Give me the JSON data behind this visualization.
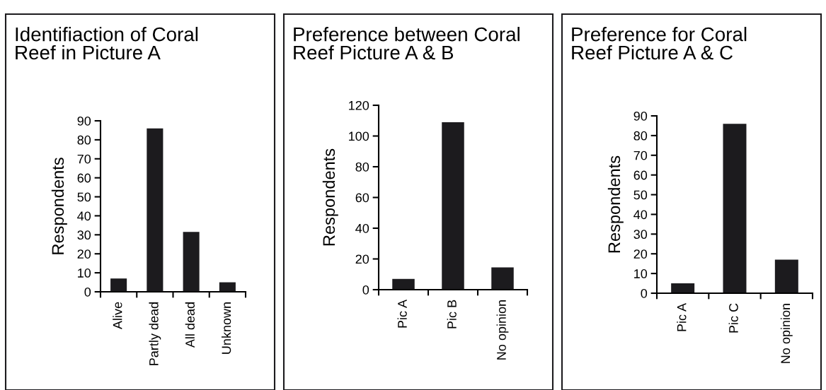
{
  "chart_data": [
    {
      "type": "bar",
      "title": "Identifiaction of Coral\nReef in Picture A",
      "ylabel": "Respondents",
      "categories": [
        "Alive",
        "Partly dead",
        "All dead",
        "Unknown"
      ],
      "values": [
        7,
        86,
        31.5,
        5
      ],
      "color": "#1c1b1e",
      "ylim": [
        0,
        90
      ],
      "yticks": [
        0,
        10,
        20,
        30,
        40,
        50,
        60,
        70,
        80,
        90
      ],
      "grid": false,
      "legend": false
    },
    {
      "type": "bar",
      "title": "Preference between Coral\nReef Picture A & B",
      "ylabel": "Respondents",
      "categories": [
        "Pic A",
        "Pic B",
        "No opinion"
      ],
      "values": [
        7,
        109,
        14.5
      ],
      "color": "#1c1b1e",
      "ylim": [
        0,
        120
      ],
      "yticks": [
        0,
        20,
        40,
        60,
        80,
        100,
        120
      ],
      "grid": false,
      "legend": false
    },
    {
      "type": "bar",
      "title": "Preference for Coral\nReef Picture A & C",
      "ylabel": "Respondents",
      "categories": [
        "Pic A",
        "Pic C",
        "No opinion"
      ],
      "values": [
        5,
        86,
        17
      ],
      "color": "#1c1b1e",
      "ylim": [
        0,
        90
      ],
      "yticks": [
        0,
        10,
        20,
        30,
        40,
        50,
        60,
        70,
        80,
        90
      ],
      "grid": false,
      "legend": false
    }
  ]
}
